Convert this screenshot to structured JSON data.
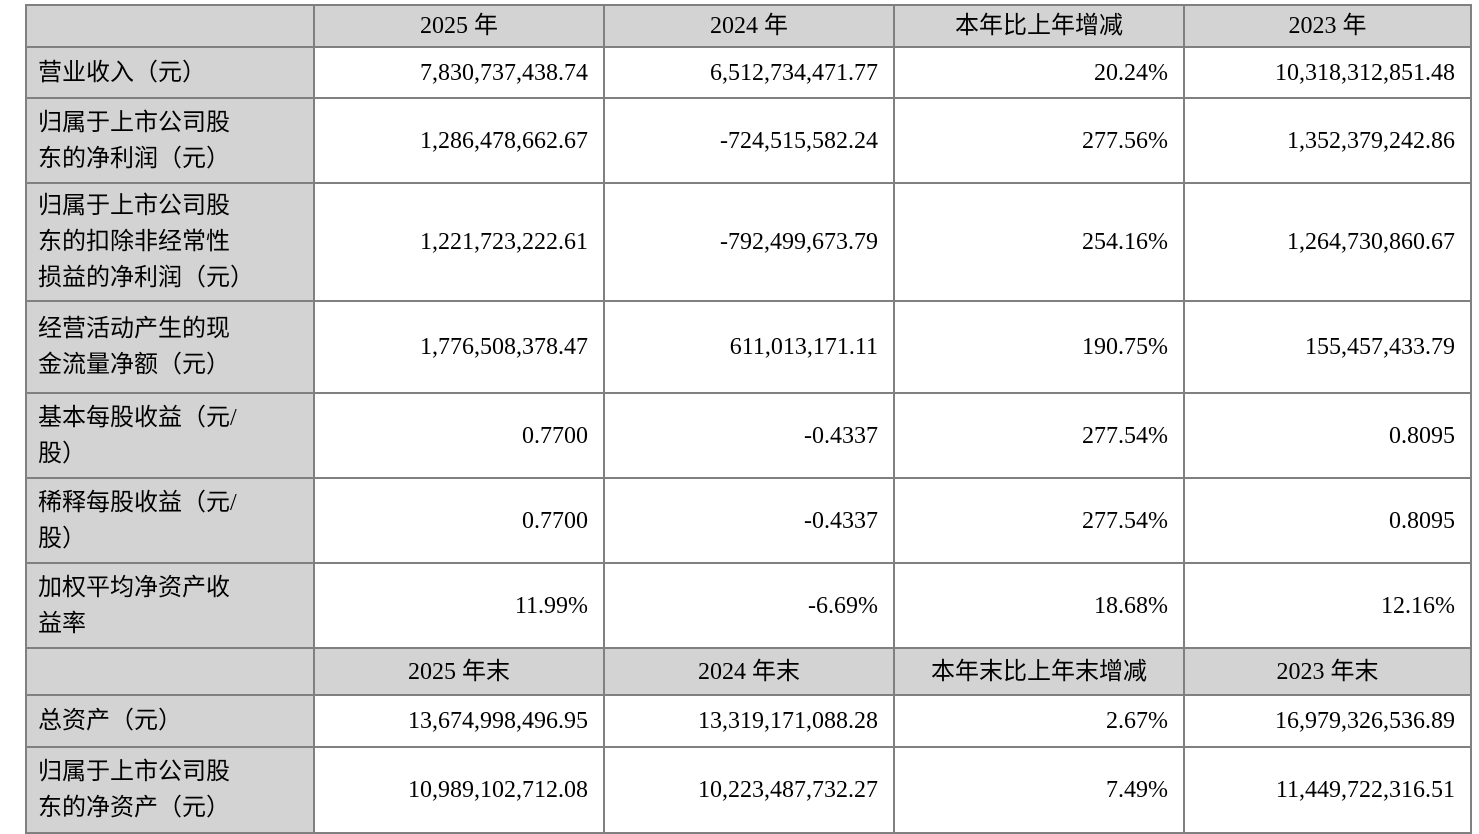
{
  "colors": {
    "header_bg": "#d3d3d3",
    "label_bg": "#d3d3d3",
    "border": "#808080",
    "text": "#000000",
    "background": "#ffffff"
  },
  "table": {
    "annual_header": {
      "corner": "",
      "col_2025": "2025 年",
      "col_2024": "2024 年",
      "col_change": "本年比上年增减",
      "col_2023": "2023 年"
    },
    "annual_rows": [
      {
        "label": "营业收入（元）",
        "y2025": "7,830,737,438.74",
        "y2024": "6,512,734,471.77",
        "change": "20.24%",
        "y2023": "10,318,312,851.48"
      },
      {
        "label": "归属于上市公司股东的净利润（元）",
        "y2025": "1,286,478,662.67",
        "y2024": "-724,515,582.24",
        "change": "277.56%",
        "y2023": "1,352,379,242.86"
      },
      {
        "label": "归属于上市公司股东的扣除非经常性损益的净利润（元）",
        "y2025": "1,221,723,222.61",
        "y2024": "-792,499,673.79",
        "change": "254.16%",
        "y2023": "1,264,730,860.67"
      },
      {
        "label": "经营活动产生的现金流量净额（元）",
        "y2025": "1,776,508,378.47",
        "y2024": "611,013,171.11",
        "change": "190.75%",
        "y2023": "155,457,433.79"
      },
      {
        "label": "基本每股收益（元/股）",
        "y2025": "0.7700",
        "y2024": "-0.4337",
        "change": "277.54%",
        "y2023": "0.8095"
      },
      {
        "label": "稀释每股收益（元/股）",
        "y2025": "0.7700",
        "y2024": "-0.4337",
        "change": "277.54%",
        "y2023": "0.8095"
      },
      {
        "label": "加权平均净资产收益率",
        "y2025": "11.99%",
        "y2024": "-6.69%",
        "change": "18.68%",
        "y2023": "12.16%"
      }
    ],
    "eoy_header": {
      "corner": "",
      "col_2025": "2025 年末",
      "col_2024": "2024 年末",
      "col_change": "本年末比上年末增减",
      "col_2023": "2023 年末"
    },
    "eoy_rows": [
      {
        "label": "总资产（元）",
        "y2025": "13,674,998,496.95",
        "y2024": "13,319,171,088.28",
        "change": "2.67%",
        "y2023": "16,979,326,536.89"
      },
      {
        "label": "归属于上市公司股东的净资产（元）",
        "y2025": "10,989,102,712.08",
        "y2024": "10,223,487,732.27",
        "change": "7.49%",
        "y2023": "11,449,722,316.51"
      }
    ]
  }
}
